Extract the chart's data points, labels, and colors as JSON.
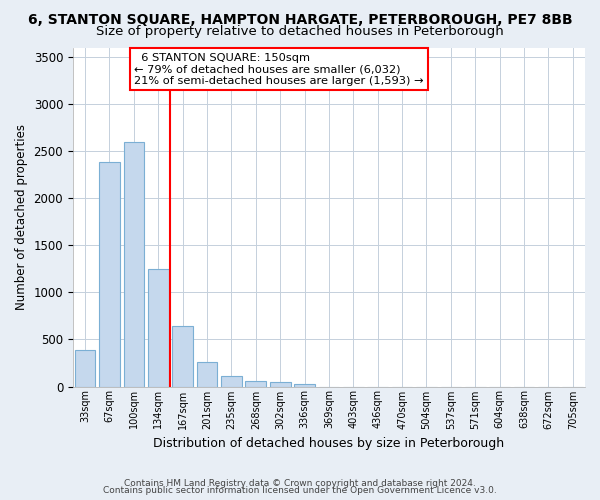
{
  "title": "6, STANTON SQUARE, HAMPTON HARGATE, PETERBOROUGH, PE7 8BB",
  "subtitle": "Size of property relative to detached houses in Peterborough",
  "xlabel": "Distribution of detached houses by size in Peterborough",
  "ylabel": "Number of detached properties",
  "footer_line1": "Contains HM Land Registry data © Crown copyright and database right 2024.",
  "footer_line2": "Contains public sector information licensed under the Open Government Licence v3.0.",
  "bin_labels": [
    "33sqm",
    "67sqm",
    "100sqm",
    "134sqm",
    "167sqm",
    "201sqm",
    "235sqm",
    "268sqm",
    "302sqm",
    "336sqm",
    "369sqm",
    "403sqm",
    "436sqm",
    "470sqm",
    "504sqm",
    "537sqm",
    "571sqm",
    "604sqm",
    "638sqm",
    "672sqm",
    "705sqm"
  ],
  "bar_values": [
    390,
    2380,
    2600,
    1250,
    640,
    260,
    110,
    55,
    45,
    25,
    0,
    0,
    0,
    0,
    0,
    0,
    0,
    0,
    0,
    0,
    0
  ],
  "bar_color": "#c5d8ed",
  "bar_edge_color": "#7bafd4",
  "red_line_x": 3.5,
  "annotation_line1": "6 STANTON SQUARE: 150sqm",
  "annotation_line2": "← 79% of detached houses are smaller (6,032)",
  "annotation_line3": "21% of semi-detached houses are larger (1,593) →",
  "ylim": [
    0,
    3600
  ],
  "yticks": [
    0,
    500,
    1000,
    1500,
    2000,
    2500,
    3000,
    3500
  ],
  "background_color": "#e8eef5",
  "plot_bg_color": "#ffffff",
  "grid_color": "#c5d0dc",
  "title_fontsize": 10,
  "subtitle_fontsize": 9.5
}
